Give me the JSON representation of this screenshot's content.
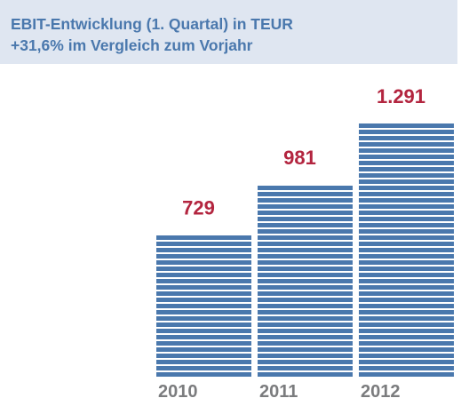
{
  "chart_data": {
    "type": "bar",
    "title": "EBIT-Entwicklung (1. Quartal) in TEUR",
    "subtitle": "+31,6% im Vergleich zum Vorjahr",
    "categories": [
      "2010",
      "2011",
      "2012"
    ],
    "values": [
      729,
      981,
      1291
    ],
    "value_labels": [
      "729",
      "981",
      "1.291"
    ],
    "xlabel": "",
    "ylabel": "",
    "ylim": [
      0,
      1291
    ],
    "grid": false,
    "legend": "none",
    "colors": {
      "bar": "#4a78ad",
      "value_label": "#b3253f",
      "tick_label": "#7b7c7e",
      "header_band": "#dfe6f1",
      "title_text": "#4a78ad"
    }
  }
}
